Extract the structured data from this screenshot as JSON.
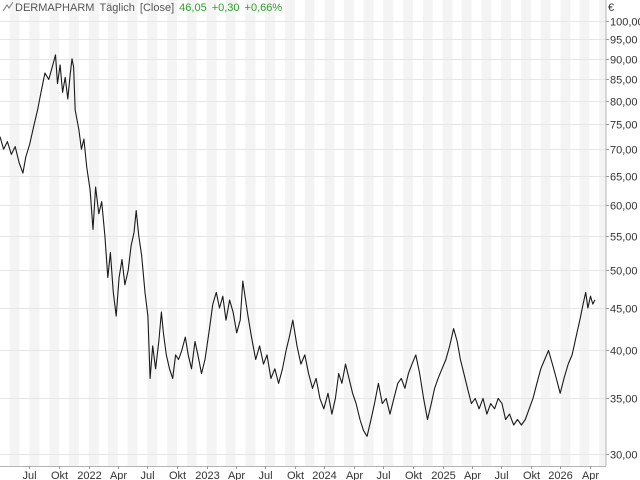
{
  "header": {
    "icon": "line-chart-icon",
    "symbol": "DERMAPHARM",
    "interval": "Täglich",
    "mode": "[Close]",
    "last": "46,05",
    "change": "+0,30",
    "change_pct": "+0,66%",
    "positive_color": "#2ca02c"
  },
  "currency": "€",
  "chart_data": {
    "type": "line",
    "title": "",
    "scale": "log",
    "ylim": [
      29,
      106
    ],
    "y_ticks": [
      30,
      35,
      40,
      45,
      50,
      55,
      60,
      65,
      70,
      75,
      80,
      85,
      90,
      95,
      100
    ],
    "y_tick_labels": [
      "30,00",
      "35,00",
      "40,00",
      "45,00",
      "50,00",
      "55,00",
      "60,00",
      "65,00",
      "70,00",
      "75,00",
      "80,00",
      "85,00",
      "90,00",
      "95,00",
      "100,00"
    ],
    "x_range": [
      "2021-04-01",
      "2026-05-22"
    ],
    "x_ticks": [
      {
        "date": "2021-07-01",
        "label": "Jul"
      },
      {
        "date": "2021-10-01",
        "label": "Okt"
      },
      {
        "date": "2022-01-01",
        "label": "2022"
      },
      {
        "date": "2022-04-01",
        "label": "Apr"
      },
      {
        "date": "2022-07-01",
        "label": "Jul"
      },
      {
        "date": "2022-10-01",
        "label": "Okt"
      },
      {
        "date": "2023-01-01",
        "label": "2023"
      },
      {
        "date": "2023-04-01",
        "label": "Apr"
      },
      {
        "date": "2023-07-01",
        "label": "Jul"
      },
      {
        "date": "2023-10-01",
        "label": "Okt"
      },
      {
        "date": "2024-01-01",
        "label": "2024"
      },
      {
        "date": "2024-04-01",
        "label": "Apr"
      },
      {
        "date": "2024-07-01",
        "label": "Jul"
      },
      {
        "date": "2024-10-01",
        "label": "Okt"
      },
      {
        "date": "2025-01-01",
        "label": "2025"
      },
      {
        "date": "2025-04-01",
        "label": "Apr"
      },
      {
        "date": "2025-07-01",
        "label": "Jul"
      },
      {
        "date": "2025-10-01",
        "label": "Okt"
      },
      {
        "date": "2026-01-01",
        "label": "2026"
      },
      {
        "date": "2026-04-01",
        "label": "Apr"
      }
    ],
    "line_color": "#1a1a1a",
    "grid": true,
    "series": [
      {
        "points": [
          [
            "2021-04-01",
            72.5
          ],
          [
            "2021-04-12",
            70.0
          ],
          [
            "2021-04-24",
            71.5
          ],
          [
            "2021-05-06",
            69.0
          ],
          [
            "2021-05-18",
            70.5
          ],
          [
            "2021-05-30",
            67.5
          ],
          [
            "2021-06-11",
            65.5
          ],
          [
            "2021-06-20",
            68.5
          ],
          [
            "2021-07-02",
            71.0
          ],
          [
            "2021-07-14",
            74.5
          ],
          [
            "2021-07-26",
            78.0
          ],
          [
            "2021-08-06",
            82.0
          ],
          [
            "2021-08-18",
            86.5
          ],
          [
            "2021-08-30",
            85.0
          ],
          [
            "2021-09-10",
            88.0
          ],
          [
            "2021-09-20",
            91.0
          ],
          [
            "2021-09-26",
            84.0
          ],
          [
            "2021-10-04",
            88.5
          ],
          [
            "2021-10-12",
            82.0
          ],
          [
            "2021-10-20",
            85.5
          ],
          [
            "2021-10-28",
            80.5
          ],
          [
            "2021-11-04",
            86.0
          ],
          [
            "2021-11-10",
            90.0
          ],
          [
            "2021-11-15",
            88.0
          ],
          [
            "2021-11-20",
            78.0
          ],
          [
            "2021-12-01",
            74.0
          ],
          [
            "2021-12-09",
            70.0
          ],
          [
            "2021-12-17",
            72.0
          ],
          [
            "2021-12-26",
            66.5
          ],
          [
            "2022-01-05",
            62.5
          ],
          [
            "2022-01-14",
            56.0
          ],
          [
            "2022-01-22",
            63.0
          ],
          [
            "2022-02-01",
            58.5
          ],
          [
            "2022-02-10",
            60.5
          ],
          [
            "2022-02-20",
            55.0
          ],
          [
            "2022-03-01",
            49.0
          ],
          [
            "2022-03-09",
            52.5
          ],
          [
            "2022-03-18",
            47.0
          ],
          [
            "2022-03-27",
            44.0
          ],
          [
            "2022-04-05",
            49.0
          ],
          [
            "2022-04-14",
            51.5
          ],
          [
            "2022-04-23",
            48.0
          ],
          [
            "2022-05-03",
            50.0
          ],
          [
            "2022-05-12",
            53.5
          ],
          [
            "2022-05-21",
            55.5
          ],
          [
            "2022-05-28",
            59.0
          ],
          [
            "2022-06-05",
            55.0
          ],
          [
            "2022-06-14",
            52.0
          ],
          [
            "2022-06-24",
            47.0
          ],
          [
            "2022-07-03",
            44.0
          ],
          [
            "2022-07-10",
            37.0
          ],
          [
            "2022-07-18",
            40.5
          ],
          [
            "2022-07-27",
            38.0
          ],
          [
            "2022-08-06",
            41.0
          ],
          [
            "2022-08-14",
            44.5
          ],
          [
            "2022-08-20",
            42.0
          ],
          [
            "2022-08-29",
            39.5
          ],
          [
            "2022-09-08",
            38.0
          ],
          [
            "2022-09-18",
            37.0
          ],
          [
            "2022-09-27",
            39.5
          ],
          [
            "2022-10-06",
            39.0
          ],
          [
            "2022-10-16",
            40.0
          ],
          [
            "2022-10-27",
            41.5
          ],
          [
            "2022-11-05",
            39.5
          ],
          [
            "2022-11-15",
            38.0
          ],
          [
            "2022-11-26",
            41.0
          ],
          [
            "2022-12-05",
            39.5
          ],
          [
            "2022-12-16",
            37.5
          ],
          [
            "2022-12-27",
            39.0
          ],
          [
            "2023-01-10",
            42.5
          ],
          [
            "2023-01-20",
            45.5
          ],
          [
            "2023-01-31",
            47.0
          ],
          [
            "2023-02-10",
            45.0
          ],
          [
            "2023-02-20",
            46.5
          ],
          [
            "2023-03-02",
            43.5
          ],
          [
            "2023-03-13",
            46.0
          ],
          [
            "2023-03-24",
            44.5
          ],
          [
            "2023-04-04",
            42.0
          ],
          [
            "2023-04-15",
            43.5
          ],
          [
            "2023-04-23",
            48.5
          ],
          [
            "2023-04-30",
            46.5
          ],
          [
            "2023-05-09",
            44.0
          ],
          [
            "2023-05-20",
            41.5
          ],
          [
            "2023-06-02",
            39.0
          ],
          [
            "2023-06-14",
            40.5
          ],
          [
            "2023-06-26",
            38.5
          ],
          [
            "2023-07-07",
            39.5
          ],
          [
            "2023-07-19",
            37.0
          ],
          [
            "2023-07-31",
            38.0
          ],
          [
            "2023-08-12",
            36.5
          ],
          [
            "2023-08-24",
            38.0
          ],
          [
            "2023-09-04",
            40.0
          ],
          [
            "2023-09-14",
            41.5
          ],
          [
            "2023-09-25",
            43.5
          ],
          [
            "2023-10-08",
            40.5
          ],
          [
            "2023-10-20",
            38.5
          ],
          [
            "2023-11-01",
            39.5
          ],
          [
            "2023-11-13",
            37.5
          ],
          [
            "2023-11-25",
            36.0
          ],
          [
            "2023-12-06",
            37.0
          ],
          [
            "2023-12-18",
            35.0
          ],
          [
            "2023-12-30",
            34.0
          ],
          [
            "2024-01-12",
            35.5
          ],
          [
            "2024-01-24",
            33.5
          ],
          [
            "2024-02-04",
            35.0
          ],
          [
            "2024-02-14",
            37.5
          ],
          [
            "2024-02-24",
            36.5
          ],
          [
            "2024-03-06",
            38.5
          ],
          [
            "2024-03-17",
            37.0
          ],
          [
            "2024-03-28",
            35.5
          ],
          [
            "2024-04-08",
            34.5
          ],
          [
            "2024-04-20",
            33.0
          ],
          [
            "2024-05-01",
            32.0
          ],
          [
            "2024-05-12",
            31.5
          ],
          [
            "2024-05-24",
            33.0
          ],
          [
            "2024-06-04",
            34.5
          ],
          [
            "2024-06-16",
            36.5
          ],
          [
            "2024-06-28",
            34.5
          ],
          [
            "2024-07-10",
            35.0
          ],
          [
            "2024-07-22",
            33.5
          ],
          [
            "2024-08-03",
            35.0
          ],
          [
            "2024-08-15",
            36.5
          ],
          [
            "2024-08-26",
            37.0
          ],
          [
            "2024-09-06",
            36.0
          ],
          [
            "2024-09-17",
            37.5
          ],
          [
            "2024-09-28",
            38.5
          ],
          [
            "2024-10-10",
            39.5
          ],
          [
            "2024-10-22",
            37.5
          ],
          [
            "2024-11-03",
            35.0
          ],
          [
            "2024-11-15",
            33.0
          ],
          [
            "2024-11-27",
            34.5
          ],
          [
            "2024-12-07",
            36.0
          ],
          [
            "2024-12-18",
            37.0
          ],
          [
            "2024-12-30",
            38.0
          ],
          [
            "2025-01-11",
            39.0
          ],
          [
            "2025-01-23",
            40.5
          ],
          [
            "2025-02-04",
            42.5
          ],
          [
            "2025-02-15",
            41.0
          ],
          [
            "2025-02-25",
            39.0
          ],
          [
            "2025-03-08",
            37.5
          ],
          [
            "2025-03-19",
            36.0
          ],
          [
            "2025-03-31",
            34.5
          ],
          [
            "2025-04-12",
            35.0
          ],
          [
            "2025-04-24",
            34.0
          ],
          [
            "2025-05-06",
            35.0
          ],
          [
            "2025-05-18",
            33.5
          ],
          [
            "2025-05-30",
            34.5
          ],
          [
            "2025-06-11",
            34.0
          ],
          [
            "2025-06-22",
            35.0
          ],
          [
            "2025-07-04",
            34.5
          ],
          [
            "2025-07-15",
            33.0
          ],
          [
            "2025-07-27",
            33.5
          ],
          [
            "2025-08-09",
            32.5
          ],
          [
            "2025-08-21",
            33.0
          ],
          [
            "2025-09-02",
            32.5
          ],
          [
            "2025-09-14",
            33.0
          ],
          [
            "2025-09-26",
            34.0
          ],
          [
            "2025-10-08",
            35.0
          ],
          [
            "2025-10-20",
            36.5
          ],
          [
            "2025-11-01",
            38.0
          ],
          [
            "2025-11-13",
            39.0
          ],
          [
            "2025-11-25",
            40.0
          ],
          [
            "2025-12-07",
            38.5
          ],
          [
            "2025-12-19",
            37.0
          ],
          [
            "2025-12-31",
            35.5
          ],
          [
            "2026-01-12",
            37.0
          ],
          [
            "2026-01-25",
            38.5
          ],
          [
            "2026-02-06",
            39.5
          ],
          [
            "2026-02-18",
            41.5
          ],
          [
            "2026-03-02",
            43.5
          ],
          [
            "2026-03-12",
            45.5
          ],
          [
            "2026-03-20",
            47.0
          ],
          [
            "2026-03-27",
            45.0
          ],
          [
            "2026-04-04",
            46.5
          ],
          [
            "2026-04-11",
            45.5
          ],
          [
            "2026-04-18",
            46.05
          ]
        ]
      }
    ]
  }
}
